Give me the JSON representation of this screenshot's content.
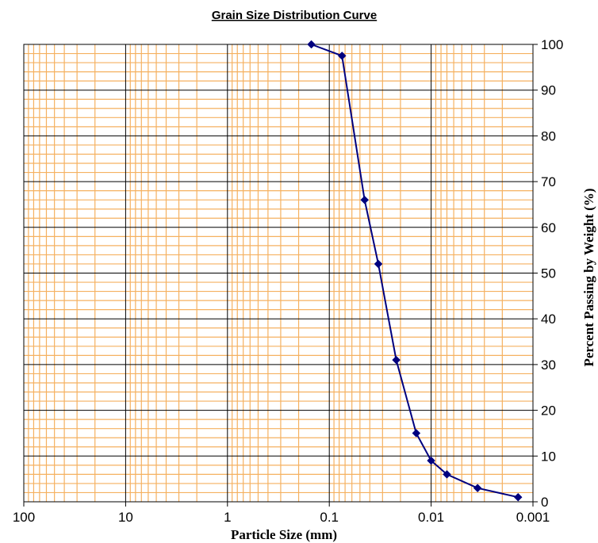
{
  "chart_data": {
    "type": "scatter",
    "title": "Grain Size Distribution Curve",
    "xlabel": "Particle Size (mm)",
    "ylabel": "Percent Passing by Weight (%)",
    "x_scale": "log",
    "x_reversed": true,
    "xlim": [
      100,
      0.001
    ],
    "ylim": [
      0,
      100
    ],
    "x_ticks": [
      100,
      10,
      1,
      0.1,
      0.01,
      0.001
    ],
    "x_tick_labels": [
      "100",
      "10",
      "1",
      "0.1",
      "0.01",
      "0.001"
    ],
    "y_ticks": [
      0,
      10,
      20,
      30,
      40,
      50,
      60,
      70,
      80,
      90,
      100
    ],
    "y_tick_labels": [
      "0",
      "10",
      "20",
      "30",
      "40",
      "50",
      "60",
      "70",
      "80",
      "90",
      "100"
    ],
    "y_axis_side": "right",
    "grid": true,
    "colors": {
      "minor_grid": "#f5b160",
      "major_grid": "#000000",
      "series": "#00007f"
    },
    "series": [
      {
        "marker": "diamond",
        "x": [
          0.15,
          0.075,
          0.045,
          0.033,
          0.022,
          0.014,
          0.01,
          0.007,
          0.0035,
          0.0014
        ],
        "y": [
          100,
          97.5,
          66,
          52,
          31,
          15,
          9,
          6,
          3,
          1
        ]
      }
    ]
  }
}
